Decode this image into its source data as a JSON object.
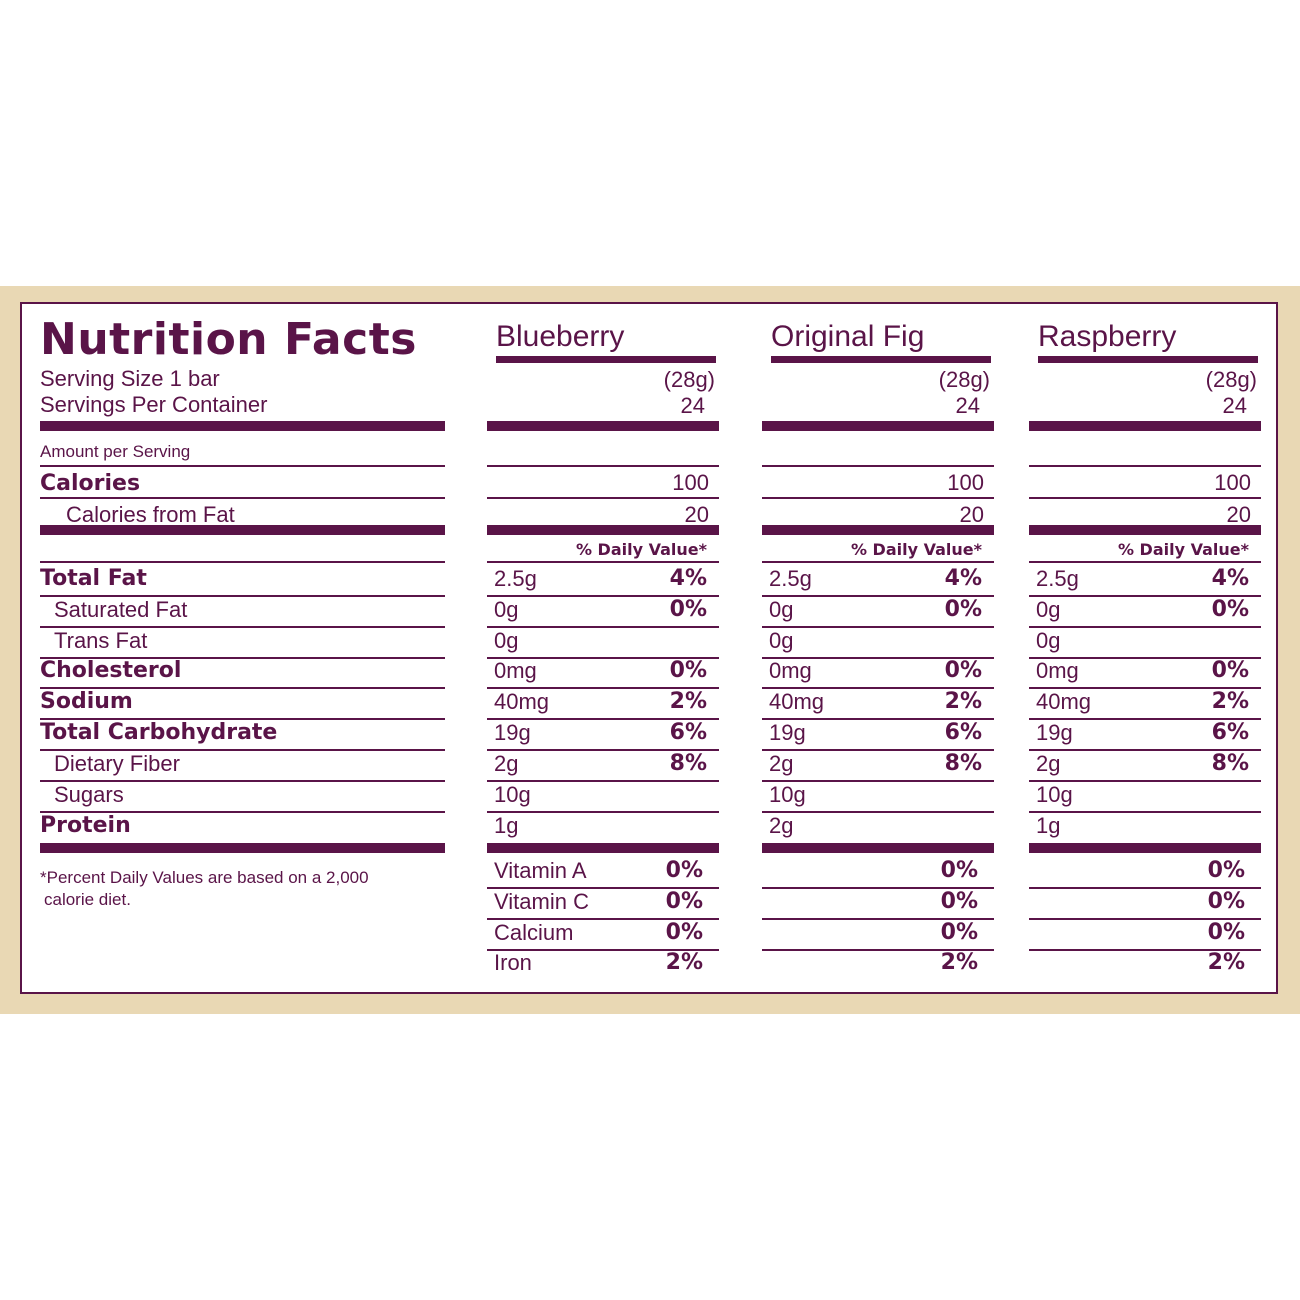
{
  "label": {
    "title": "Nutrition Facts",
    "serving_size": "Serving Size 1 bar",
    "servings_per_container": "Servings Per Container",
    "amount_per_serving": "Amount per Serving",
    "calories": "Calories",
    "calories_from_fat": "Calories from Fat",
    "daily_value_header": "% Daily Value*",
    "footnote_line1": "*Percent Daily Values are based on a 2,000",
    "footnote_line2": "calorie diet.",
    "nutrients": [
      {
        "name": "Total Fat",
        "bold": true
      },
      {
        "name": "Saturated Fat",
        "bold": false
      },
      {
        "name": "Trans Fat",
        "bold": false
      },
      {
        "name": "Cholesterol",
        "bold": true
      },
      {
        "name": "Sodium",
        "bold": true
      },
      {
        "name": "Total Carbohydrate",
        "bold": true
      },
      {
        "name": "Dietary Fiber",
        "bold": false
      },
      {
        "name": "Sugars",
        "bold": false
      },
      {
        "name": "Protein",
        "bold": true
      }
    ],
    "vitamins": [
      "Vitamin A",
      "Vitamin C",
      "Calcium",
      "Iron"
    ]
  },
  "flavors": [
    {
      "name": "Blueberry",
      "serving_grams": "(28g)",
      "servings": "24",
      "calories": "100",
      "calories_from_fat": "20",
      "nutrients": [
        {
          "amount": "2.5g",
          "dv": "4%"
        },
        {
          "amount": "0g",
          "dv": "0%"
        },
        {
          "amount": "0g",
          "dv": ""
        },
        {
          "amount": "0mg",
          "dv": "0%"
        },
        {
          "amount": "40mg",
          "dv": "2%"
        },
        {
          "amount": "19g",
          "dv": "6%"
        },
        {
          "amount": "2g",
          "dv": "8%"
        },
        {
          "amount": "10g",
          "dv": ""
        },
        {
          "amount": "1g",
          "dv": ""
        }
      ],
      "vitamins": [
        "0%",
        "0%",
        "0%",
        "2%"
      ],
      "show_vitamin_names": true
    },
    {
      "name": "Original Fig",
      "serving_grams": "(28g)",
      "servings": "24",
      "calories": "100",
      "calories_from_fat": "20",
      "nutrients": [
        {
          "amount": "2.5g",
          "dv": "4%"
        },
        {
          "amount": "0g",
          "dv": "0%"
        },
        {
          "amount": "0g",
          "dv": ""
        },
        {
          "amount": "0mg",
          "dv": "0%"
        },
        {
          "amount": "40mg",
          "dv": "2%"
        },
        {
          "amount": "19g",
          "dv": "6%"
        },
        {
          "amount": "2g",
          "dv": "8%"
        },
        {
          "amount": "10g",
          "dv": ""
        },
        {
          "amount": "2g",
          "dv": ""
        }
      ],
      "vitamins": [
        "0%",
        "0%",
        "0%",
        "2%"
      ],
      "show_vitamin_names": false
    },
    {
      "name": "Raspberry",
      "serving_grams": "(28g)",
      "servings": "24",
      "calories": "100",
      "calories_from_fat": "20",
      "nutrients": [
        {
          "amount": "2.5g",
          "dv": "4%"
        },
        {
          "amount": "0g",
          "dv": "0%"
        },
        {
          "amount": "0g",
          "dv": ""
        },
        {
          "amount": "0mg",
          "dv": "0%"
        },
        {
          "amount": "40mg",
          "dv": "2%"
        },
        {
          "amount": "19g",
          "dv": "6%"
        },
        {
          "amount": "2g",
          "dv": "8%"
        },
        {
          "amount": "10g",
          "dv": ""
        },
        {
          "amount": "1g",
          "dv": ""
        }
      ],
      "vitamins": [
        "0%",
        "0%",
        "0%",
        "2%"
      ],
      "show_vitamin_names": false
    }
  ]
}
